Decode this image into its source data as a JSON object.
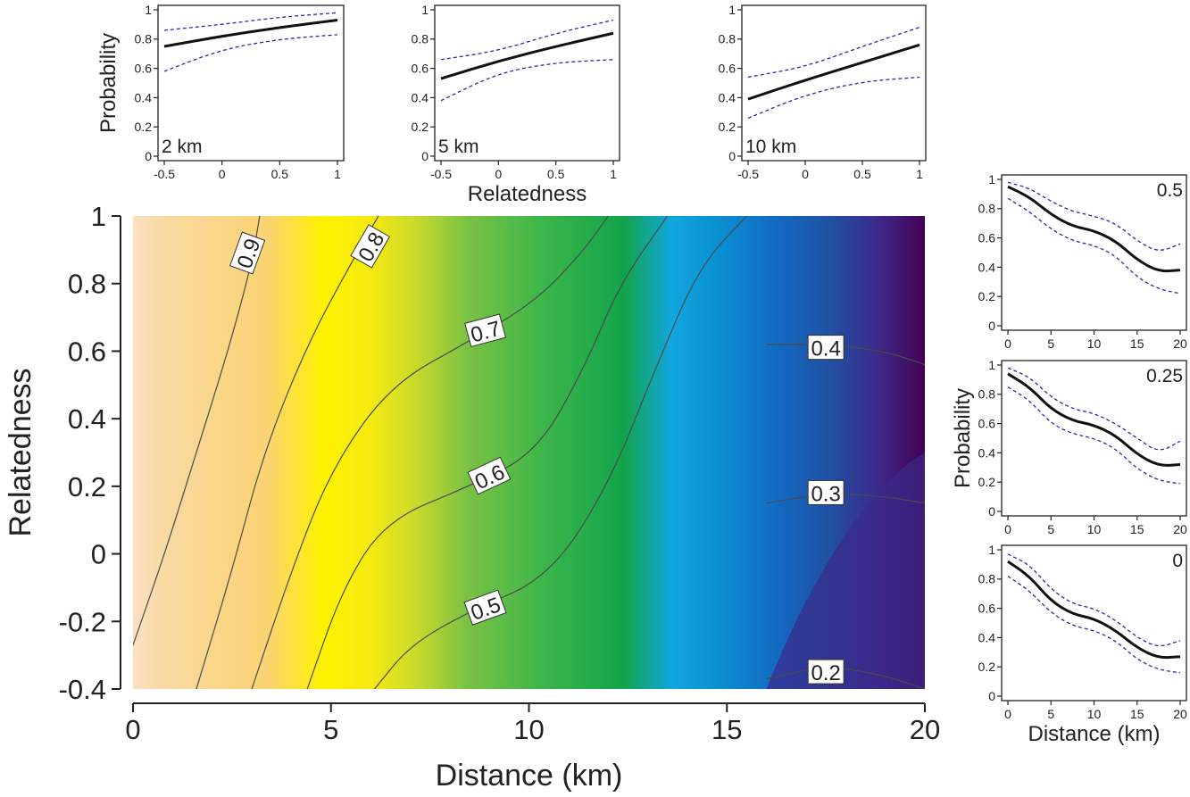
{
  "chart_data": [
    {
      "type": "heatmap",
      "id": "main",
      "xlabel": "Distance (km)",
      "ylabel": "Relatedness",
      "xlim": [
        0,
        20
      ],
      "ylim": [
        -0.4,
        1
      ],
      "xticks": [
        "0",
        "5",
        "10",
        "15",
        "20"
      ],
      "yticks": [
        "-0.4",
        "-0.2",
        "0",
        "0.2",
        "0.4",
        "0.6",
        "0.8",
        "1"
      ],
      "colormap": [
        "#440154",
        "#3b2a8a",
        "#2151a3",
        "#1467c0",
        "#0a8fd1",
        "#11a7df",
        "#12a44b",
        "#3bb54a",
        "#7cc243",
        "#c6d92c",
        "#f6ea11",
        "#fff200",
        "#fbd372",
        "#f9d9a3",
        "#fae0c0"
      ],
      "contours": [
        {
          "level": "0.9",
          "points": [
            [
              0,
              -0.27
            ],
            [
              0.8,
              0.0
            ],
            [
              1.6,
              0.3
            ],
            [
              2.4,
              0.6
            ],
            [
              3.0,
              0.86
            ],
            [
              3.2,
              1.0
            ]
          ]
        },
        {
          "level": "0.8",
          "points": [
            [
              1.6,
              -0.4
            ],
            [
              2.5,
              -0.05
            ],
            [
              3.3,
              0.3
            ],
            [
              4.4,
              0.62
            ],
            [
              5.6,
              0.88
            ],
            [
              6.2,
              1.0
            ]
          ]
        },
        {
          "level": "0.7",
          "points": [
            [
              3.0,
              -0.4
            ],
            [
              4.0,
              -0.05
            ],
            [
              5.0,
              0.25
            ],
            [
              6.5,
              0.5
            ],
            [
              8.5,
              0.63
            ],
            [
              10.2,
              0.75
            ],
            [
              11.4,
              0.9
            ],
            [
              12.0,
              1.0
            ]
          ]
        },
        {
          "level": "0.6",
          "points": [
            [
              4.4,
              -0.4
            ],
            [
              5.3,
              -0.1
            ],
            [
              6.4,
              0.1
            ],
            [
              8.5,
              0.2
            ],
            [
              10.2,
              0.3
            ],
            [
              11.4,
              0.55
            ],
            [
              12.3,
              0.8
            ],
            [
              13.5,
              1.0
            ]
          ]
        },
        {
          "level": "0.5",
          "points": [
            [
              6.1,
              -0.4
            ],
            [
              7.0,
              -0.27
            ],
            [
              8.5,
              -0.17
            ],
            [
              10.5,
              -0.07
            ],
            [
              12.0,
              0.2
            ],
            [
              13.2,
              0.55
            ],
            [
              14.3,
              0.85
            ],
            [
              15.5,
              1.0
            ]
          ]
        },
        {
          "level": "0.4",
          "points": [
            [
              16.0,
              0.62
            ],
            [
              17.5,
              0.62
            ],
            [
              19.0,
              0.6
            ],
            [
              20.0,
              0.56
            ]
          ]
        },
        {
          "level": "0.3",
          "points": [
            [
              16.0,
              0.15
            ],
            [
              17.5,
              0.18
            ],
            [
              19.0,
              0.17
            ],
            [
              20.0,
              0.15
            ]
          ]
        },
        {
          "level": "0.2",
          "points": [
            [
              16.0,
              -0.37
            ],
            [
              17.5,
              -0.33
            ],
            [
              19.0,
              -0.36
            ],
            [
              20.0,
              -0.4
            ]
          ]
        }
      ]
    },
    {
      "type": "line",
      "id": "top-2km",
      "label": "2 km",
      "ylabel": "Probability",
      "xlabel": "",
      "xlim": [
        -0.5,
        1
      ],
      "ylim": [
        0,
        1
      ],
      "xticks": [
        "-0.5",
        "0",
        "0.5",
        "1"
      ],
      "yticks": [
        "0",
        "0.2",
        "0.4",
        "0.6",
        "0.8",
        "1"
      ],
      "x": [
        -0.5,
        0,
        0.5,
        1
      ],
      "series": [
        {
          "name": "estimate",
          "values": [
            0.75,
            0.82,
            0.88,
            0.93
          ]
        },
        {
          "name": "lower",
          "values": [
            0.58,
            0.73,
            0.8,
            0.83
          ]
        },
        {
          "name": "upper",
          "values": [
            0.86,
            0.9,
            0.95,
            0.98
          ]
        }
      ]
    },
    {
      "type": "line",
      "id": "top-5km",
      "label": "5 km",
      "ylabel": "",
      "xlabel": "Relatedness",
      "xlim": [
        -0.5,
        1
      ],
      "ylim": [
        0,
        1
      ],
      "xticks": [
        "-0.5",
        "0",
        "0.5",
        "1"
      ],
      "yticks": [
        "0",
        "0.2",
        "0.4",
        "0.6",
        "0.8",
        "1"
      ],
      "x": [
        -0.5,
        0,
        0.5,
        1
      ],
      "series": [
        {
          "name": "estimate",
          "values": [
            0.53,
            0.65,
            0.75,
            0.84
          ]
        },
        {
          "name": "lower",
          "values": [
            0.38,
            0.57,
            0.64,
            0.66
          ]
        },
        {
          "name": "upper",
          "values": [
            0.66,
            0.72,
            0.84,
            0.93
          ]
        }
      ]
    },
    {
      "type": "line",
      "id": "top-10km",
      "label": "10 km",
      "ylabel": "",
      "xlabel": "",
      "xlim": [
        -0.5,
        1
      ],
      "ylim": [
        0,
        1
      ],
      "xticks": [
        "-0.5",
        "0",
        "0.5",
        "1"
      ],
      "yticks": [
        "0",
        "0.2",
        "0.4",
        "0.6",
        "0.8",
        "1"
      ],
      "x": [
        -0.5,
        0,
        0.5,
        1
      ],
      "series": [
        {
          "name": "estimate",
          "values": [
            0.39,
            0.52,
            0.64,
            0.76
          ]
        },
        {
          "name": "lower",
          "values": [
            0.26,
            0.42,
            0.51,
            0.54
          ]
        },
        {
          "name": "upper",
          "values": [
            0.54,
            0.61,
            0.75,
            0.88
          ]
        }
      ]
    },
    {
      "type": "line",
      "id": "right-0.5",
      "label": "0.5",
      "ylabel": "",
      "xlabel": "",
      "xlim": [
        0,
        20
      ],
      "ylim": [
        0,
        1
      ],
      "xticks": [
        "0",
        "5",
        "10",
        "15",
        "20"
      ],
      "yticks": [
        "0",
        "0.2",
        "0.4",
        "0.6",
        "0.8",
        "1"
      ],
      "x": [
        0,
        2.5,
        5,
        7.5,
        10,
        12.5,
        15,
        17.5,
        20
      ],
      "series": [
        {
          "name": "estimate",
          "values": [
            0.95,
            0.88,
            0.76,
            0.68,
            0.65,
            0.58,
            0.45,
            0.37,
            0.38
          ]
        },
        {
          "name": "lower",
          "values": [
            0.87,
            0.78,
            0.66,
            0.58,
            0.55,
            0.48,
            0.33,
            0.25,
            0.22
          ]
        },
        {
          "name": "upper",
          "values": [
            0.98,
            0.94,
            0.85,
            0.78,
            0.75,
            0.7,
            0.58,
            0.5,
            0.56
          ]
        }
      ]
    },
    {
      "type": "line",
      "id": "right-0.25",
      "label": "0.25",
      "ylabel": "Probability",
      "xlabel": "",
      "xlim": [
        0,
        20
      ],
      "ylim": [
        0,
        1
      ],
      "xticks": [
        "0",
        "5",
        "10",
        "15",
        "20"
      ],
      "yticks": [
        "0",
        "0.2",
        "0.4",
        "0.6",
        "0.8",
        "1"
      ],
      "x": [
        0,
        2.5,
        5,
        7.5,
        10,
        12.5,
        15,
        17.5,
        20
      ],
      "series": [
        {
          "name": "estimate",
          "values": [
            0.94,
            0.85,
            0.7,
            0.62,
            0.59,
            0.52,
            0.39,
            0.31,
            0.32
          ]
        },
        {
          "name": "lower",
          "values": [
            0.85,
            0.76,
            0.6,
            0.53,
            0.5,
            0.43,
            0.29,
            0.21,
            0.19
          ]
        },
        {
          "name": "upper",
          "values": [
            0.98,
            0.92,
            0.78,
            0.7,
            0.67,
            0.6,
            0.5,
            0.4,
            0.48
          ]
        }
      ]
    },
    {
      "type": "line",
      "id": "right-0",
      "label": "0",
      "ylabel": "",
      "xlabel": "Distance (km)",
      "xlim": [
        0,
        20
      ],
      "ylim": [
        0,
        1
      ],
      "xticks": [
        "0",
        "5",
        "10",
        "15",
        "20"
      ],
      "yticks": [
        "0",
        "0.2",
        "0.4",
        "0.6",
        "0.8",
        "1"
      ],
      "x": [
        0,
        2.5,
        5,
        7.5,
        10,
        12.5,
        15,
        17.5,
        20
      ],
      "series": [
        {
          "name": "estimate",
          "values": [
            0.92,
            0.82,
            0.65,
            0.56,
            0.53,
            0.45,
            0.33,
            0.26,
            0.27
          ]
        },
        {
          "name": "lower",
          "values": [
            0.82,
            0.72,
            0.57,
            0.48,
            0.45,
            0.38,
            0.25,
            0.18,
            0.16
          ]
        },
        {
          "name": "upper",
          "values": [
            0.97,
            0.9,
            0.73,
            0.63,
            0.6,
            0.52,
            0.4,
            0.33,
            0.38
          ]
        }
      ]
    }
  ]
}
